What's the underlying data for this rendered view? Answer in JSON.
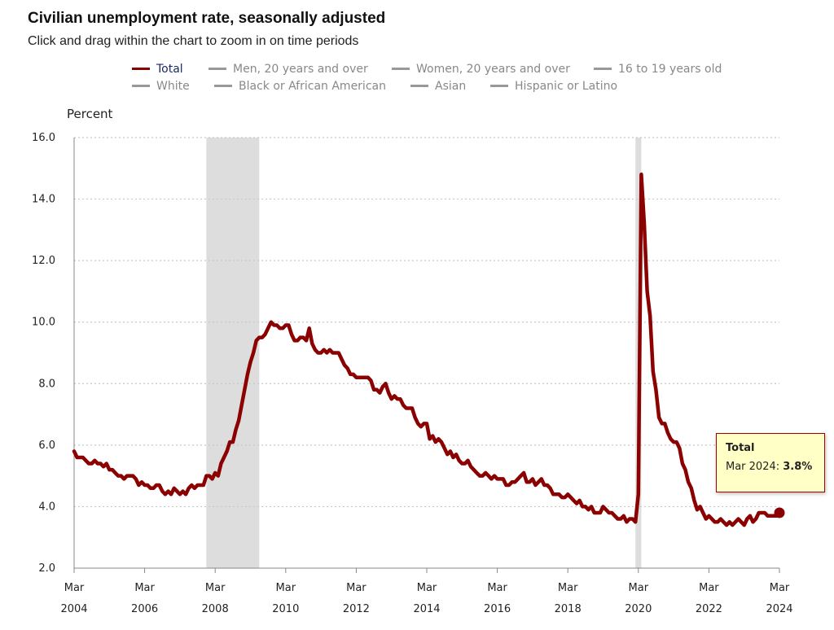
{
  "title": "Civilian unemployment rate, seasonally adjusted",
  "subtitle": "Click and drag within the chart to zoom in on time periods",
  "legend": [
    {
      "label": "Total",
      "color": "#8b0000",
      "active": true
    },
    {
      "label": "Men, 20 years and over",
      "color": "#999999",
      "active": false
    },
    {
      "label": "Women, 20 years and over",
      "color": "#999999",
      "active": false
    },
    {
      "label": "16 to 19 years old",
      "color": "#999999",
      "active": false
    },
    {
      "label": "White",
      "color": "#999999",
      "active": false
    },
    {
      "label": "Black or African American",
      "color": "#999999",
      "active": false
    },
    {
      "label": "Asian",
      "color": "#999999",
      "active": false
    },
    {
      "label": "Hispanic or Latino",
      "color": "#999999",
      "active": false
    }
  ],
  "tooltip": {
    "title": "Total",
    "label": "Mar 2024:",
    "value": "3.8%"
  },
  "colors": {
    "line": "#8b0000",
    "recession": "#dddddd",
    "grid": "#c8c8c8",
    "axis": "#888888"
  },
  "chart_data": {
    "type": "line",
    "title": "Civilian unemployment rate, seasonally adjusted",
    "ylabel": "Percent",
    "xlabel": "",
    "ylim": [
      2.0,
      16.0
    ],
    "yticks": [
      "2.0",
      "4.0",
      "6.0",
      "8.0",
      "10.0",
      "12.0",
      "14.0",
      "16.0"
    ],
    "xticks": [
      {
        "month": "Mar",
        "year": "2004"
      },
      {
        "month": "Mar",
        "year": "2006"
      },
      {
        "month": "Mar",
        "year": "2008"
      },
      {
        "month": "Mar",
        "year": "2010"
      },
      {
        "month": "Mar",
        "year": "2012"
      },
      {
        "month": "Mar",
        "year": "2014"
      },
      {
        "month": "Mar",
        "year": "2016"
      },
      {
        "month": "Mar",
        "year": "2018"
      },
      {
        "month": "Mar",
        "year": "2020"
      },
      {
        "month": "Mar",
        "year": "2022"
      },
      {
        "month": "Mar",
        "year": "2024"
      }
    ],
    "x_start": "Mar 2004",
    "x_end": "Mar 2024",
    "recessions": [
      {
        "start": "Dec 2007",
        "end": "Jun 2009"
      },
      {
        "start": "Feb 2020",
        "end": "Apr 2020"
      }
    ],
    "highlight": {
      "date": "Mar 2024",
      "value": 3.8
    },
    "series": [
      {
        "name": "Total",
        "start": "Mar 2004",
        "values": [
          5.8,
          5.6,
          5.6,
          5.6,
          5.5,
          5.4,
          5.4,
          5.5,
          5.4,
          5.4,
          5.3,
          5.4,
          5.2,
          5.2,
          5.1,
          5.0,
          5.0,
          4.9,
          5.0,
          5.0,
          5.0,
          4.9,
          4.7,
          4.8,
          4.7,
          4.7,
          4.6,
          4.6,
          4.7,
          4.7,
          4.5,
          4.4,
          4.5,
          4.4,
          4.6,
          4.5,
          4.4,
          4.5,
          4.4,
          4.6,
          4.7,
          4.6,
          4.7,
          4.7,
          4.7,
          5.0,
          5.0,
          4.9,
          5.1,
          5.0,
          5.4,
          5.6,
          5.8,
          6.1,
          6.1,
          6.5,
          6.8,
          7.3,
          7.8,
          8.3,
          8.7,
          9.0,
          9.4,
          9.5,
          9.5,
          9.6,
          9.8,
          10.0,
          9.9,
          9.9,
          9.8,
          9.8,
          9.9,
          9.9,
          9.6,
          9.4,
          9.4,
          9.5,
          9.5,
          9.4,
          9.8,
          9.3,
          9.1,
          9.0,
          9.0,
          9.1,
          9.0,
          9.1,
          9.0,
          9.0,
          9.0,
          8.8,
          8.6,
          8.5,
          8.3,
          8.3,
          8.2,
          8.2,
          8.2,
          8.2,
          8.2,
          8.1,
          7.8,
          7.8,
          7.7,
          7.9,
          8.0,
          7.7,
          7.5,
          7.6,
          7.5,
          7.5,
          7.3,
          7.2,
          7.2,
          7.2,
          6.9,
          6.7,
          6.6,
          6.7,
          6.7,
          6.2,
          6.3,
          6.1,
          6.2,
          6.1,
          5.9,
          5.7,
          5.8,
          5.6,
          5.7,
          5.5,
          5.4,
          5.4,
          5.5,
          5.3,
          5.2,
          5.1,
          5.0,
          5.0,
          5.1,
          5.0,
          4.9,
          5.0,
          4.9,
          4.9,
          4.9,
          4.7,
          4.7,
          4.8,
          4.8,
          4.9,
          5.0,
          5.1,
          4.8,
          4.8,
          4.9,
          4.7,
          4.8,
          4.9,
          4.7,
          4.7,
          4.6,
          4.4,
          4.4,
          4.4,
          4.3,
          4.3,
          4.4,
          4.3,
          4.2,
          4.1,
          4.2,
          4.0,
          4.0,
          3.9,
          4.0,
          3.8,
          3.8,
          3.8,
          4.0,
          3.9,
          3.8,
          3.8,
          3.7,
          3.6,
          3.6,
          3.7,
          3.5,
          3.6,
          3.6,
          3.5,
          4.4,
          14.8,
          13.2,
          11.0,
          10.2,
          8.4,
          7.8,
          6.9,
          6.7,
          6.7,
          6.4,
          6.2,
          6.1,
          6.1,
          5.9,
          5.4,
          5.2,
          4.8,
          4.6,
          4.2,
          3.9,
          4.0,
          3.8,
          3.6,
          3.7,
          3.6,
          3.5,
          3.5,
          3.6,
          3.5,
          3.4,
          3.5,
          3.4,
          3.5,
          3.6,
          3.5,
          3.4,
          3.6,
          3.7,
          3.5,
          3.6,
          3.8,
          3.8,
          3.8,
          3.7,
          3.7,
          3.7,
          3.7,
          3.9,
          3.8
        ]
      }
    ]
  }
}
